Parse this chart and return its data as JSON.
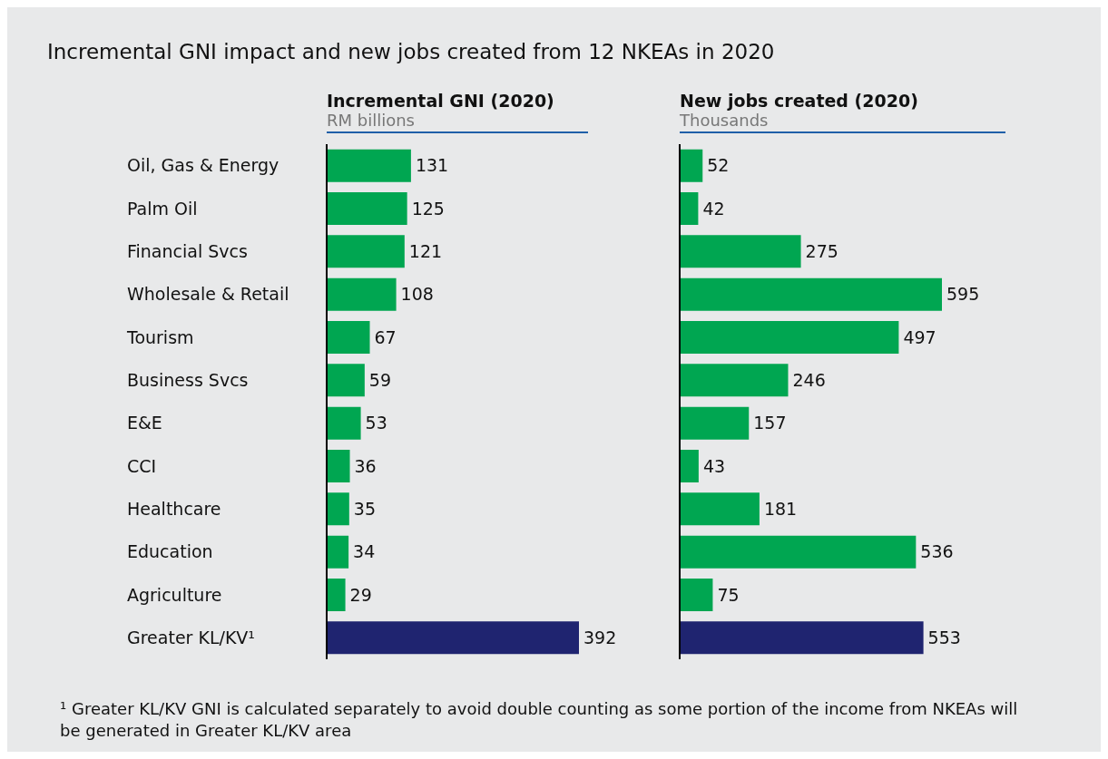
{
  "chart_data": [
    {
      "type": "bar",
      "orientation": "horizontal",
      "title": "Incremental GNI (2020)",
      "subtitle": "RM billions",
      "categories": [
        "Oil, Gas & Energy",
        "Palm Oil",
        "Financial Svcs",
        "Wholesale & Retail",
        "Tourism",
        "Business Svcs",
        "E&E",
        "CCI",
        "Healthcare",
        "Education",
        "Agriculture",
        "Greater KL/KV¹"
      ],
      "values": [
        131,
        125,
        121,
        108,
        67,
        59,
        53,
        36,
        35,
        34,
        29,
        392
      ],
      "colors": [
        "#00a651",
        "#00a651",
        "#00a651",
        "#00a651",
        "#00a651",
        "#00a651",
        "#00a651",
        "#00a651",
        "#00a651",
        "#00a651",
        "#00a651",
        "#1f2470"
      ],
      "data_labels": true,
      "grid": false,
      "legend": false,
      "annotations": [
        "Incremental GNI impact and new jobs created from 12 NKEAs in 2020",
        "¹ Greater KL/KV GNI is calculated separately to avoid double counting as some portion of the income from NKEAs will be generated in Greater KL/KV area"
      ]
    },
    {
      "type": "bar",
      "orientation": "horizontal",
      "title": "New jobs created (2020)",
      "subtitle": "Thousands",
      "categories": [
        null,
        null,
        null,
        null,
        null,
        null,
        null,
        null,
        null,
        null,
        null,
        null
      ],
      "values": [
        52,
        42,
        275,
        595,
        497,
        246,
        157,
        43,
        181,
        536,
        75,
        553
      ],
      "colors": [
        "#00a651",
        "#00a651",
        "#00a651",
        "#00a651",
        "#00a651",
        "#00a651",
        "#00a651",
        "#00a651",
        "#00a651",
        "#00a651",
        "#00a651",
        "#1f2470"
      ],
      "data_labels": true,
      "grid": false,
      "legend": false
    }
  ]
}
